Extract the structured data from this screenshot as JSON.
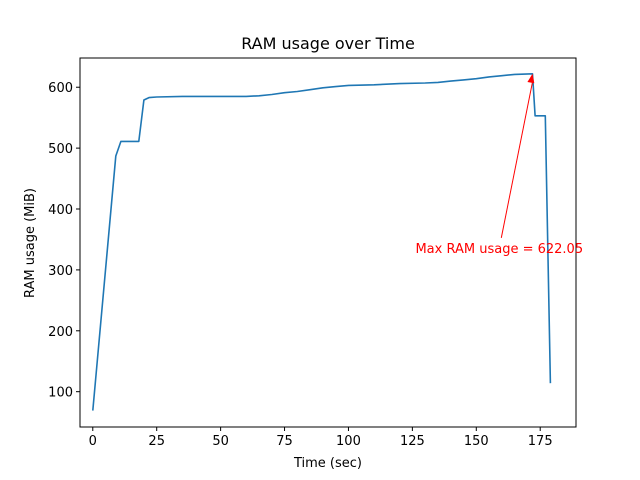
{
  "chart_data": {
    "type": "line",
    "title": "RAM usage over Time",
    "xlabel": "Time (sec)",
    "ylabel": "RAM usage (MiB)",
    "xlim": [
      -5,
      189
    ],
    "ylim": [
      42,
      648
    ],
    "xticks": [
      0,
      25,
      50,
      75,
      100,
      125,
      150,
      175
    ],
    "yticks": [
      100,
      200,
      300,
      400,
      500,
      600
    ],
    "grid": false,
    "series": [
      {
        "color": "#1f77b4",
        "points": [
          [
            0,
            69
          ],
          [
            9,
            487
          ],
          [
            11,
            511
          ],
          [
            18,
            511
          ],
          [
            20,
            579
          ],
          [
            22,
            583
          ],
          [
            25,
            584
          ],
          [
            35,
            585
          ],
          [
            50,
            585
          ],
          [
            60,
            585
          ],
          [
            65,
            586
          ],
          [
            70,
            588
          ],
          [
            75,
            591
          ],
          [
            80,
            593
          ],
          [
            85,
            596
          ],
          [
            90,
            599
          ],
          [
            95,
            601
          ],
          [
            100,
            603
          ],
          [
            110,
            604
          ],
          [
            120,
            606
          ],
          [
            130,
            607
          ],
          [
            135,
            608
          ],
          [
            140,
            610
          ],
          [
            145,
            612
          ],
          [
            150,
            614
          ],
          [
            155,
            617
          ],
          [
            160,
            619
          ],
          [
            165,
            621
          ],
          [
            172,
            622.05
          ],
          [
            173,
            553
          ],
          [
            177,
            553
          ],
          [
            179,
            114
          ]
        ]
      }
    ],
    "annotation": {
      "text": "Max RAM usage = 622.05",
      "color": "#ff0000",
      "point": [
        172,
        622.05
      ],
      "text_position": [
        159,
        328
      ]
    }
  }
}
